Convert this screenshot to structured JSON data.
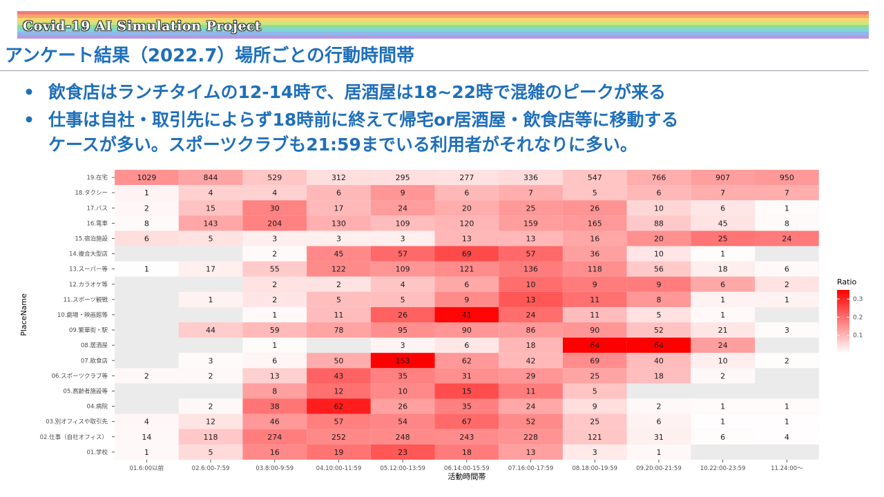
{
  "banner": {
    "title": "Covid-19 AI Simulation Project"
  },
  "slide": {
    "title": "アンケート結果（2022.7）場所ごとの行動時間帯",
    "bullets": [
      "飲食店はランチタイムの12-14時で、居酒屋は18~22時で混雑のピークが来る",
      "仕事は自社・取引先によらず18時前に終えて帰宅or居酒屋・飲食店等に移動する"
    ],
    "bullet2_continuation": "ケースが多い。スポーツクラブも21:59までいる利用者がそれなりに多い。",
    "bullet_marker": "•"
  },
  "colors": {
    "accent": "#1f6fba",
    "heat_high": "#ff0000",
    "heat_low": "#ffffff",
    "panel_bg": "#ebebeb"
  },
  "chart_data": {
    "type": "heatmap",
    "xlabel": "活動時間帯",
    "ylabel": "PlaceName",
    "x": [
      "01.6:00以前",
      "02.6:00-7:59",
      "03.8:00-9:59",
      "04.10:00-11:59",
      "05.12:00-13:59",
      "06.14:00-15:59",
      "07.16:00-17:59",
      "08.18:00-19:59",
      "09.20:00-21:59",
      "10.22:00-23:59",
      "11.24:00～"
    ],
    "y": [
      "19.在宅",
      "18.タクシー",
      "17.バス",
      "16.電車",
      "15.宿泊施設",
      "14.複合大型店",
      "13.スーパー等",
      "12.カラオケ等",
      "11.スポーツ観戦",
      "10.劇場・映画館等",
      "09.繁華街・駅",
      "08.居酒屋",
      "07.飲食店",
      "06.スポーツクラブ等",
      "05.高齢者施設等",
      "04.病院",
      "03.別オフィスや取引先",
      "02.仕事（自社オフィス）",
      "01.学校"
    ],
    "values": [
      [
        1029,
        844,
        529,
        312,
        295,
        277,
        336,
        547,
        766,
        907,
        950
      ],
      [
        1,
        4,
        4,
        6,
        9,
        6,
        7,
        5,
        6,
        7,
        7
      ],
      [
        2,
        15,
        30,
        17,
        24,
        20,
        25,
        26,
        10,
        6,
        1
      ],
      [
        8,
        143,
        204,
        130,
        109,
        120,
        159,
        165,
        88,
        45,
        8
      ],
      [
        6,
        5,
        3,
        3,
        3,
        13,
        13,
        16,
        20,
        25,
        24
      ],
      [
        null,
        null,
        2,
        45,
        57,
        69,
        57,
        36,
        10,
        1,
        null
      ],
      [
        1,
        17,
        55,
        122,
        109,
        121,
        136,
        118,
        56,
        18,
        6
      ],
      [
        null,
        null,
        2,
        2,
        4,
        6,
        10,
        9,
        9,
        6,
        2
      ],
      [
        null,
        1,
        2,
        5,
        5,
        9,
        13,
        11,
        8,
        1,
        1
      ],
      [
        null,
        null,
        1,
        11,
        26,
        41,
        24,
        11,
        5,
        1,
        null
      ],
      [
        null,
        44,
        59,
        78,
        95,
        90,
        86,
        90,
        52,
        21,
        3
      ],
      [
        null,
        null,
        1,
        null,
        3,
        6,
        18,
        64,
        64,
        24,
        null
      ],
      [
        null,
        3,
        6,
        50,
        153,
        62,
        42,
        69,
        40,
        10,
        2
      ],
      [
        2,
        2,
        13,
        43,
        35,
        31,
        29,
        25,
        18,
        2,
        null
      ],
      [
        null,
        null,
        8,
        12,
        10,
        15,
        11,
        5,
        null,
        null,
        null
      ],
      [
        null,
        2,
        38,
        62,
        26,
        35,
        24,
        9,
        2,
        1,
        1
      ],
      [
        4,
        12,
        46,
        57,
        54,
        67,
        52,
        25,
        6,
        1,
        1
      ],
      [
        14,
        118,
        274,
        252,
        248,
        243,
        228,
        121,
        31,
        6,
        4
      ],
      [
        1,
        5,
        16,
        19,
        23,
        18,
        13,
        3,
        1,
        null,
        null
      ]
    ],
    "legend": {
      "title": "Ratio",
      "ticks": [
        "0.3",
        "0.2",
        "0.1"
      ],
      "tick_values": [
        0.3,
        0.2,
        0.1
      ],
      "max": 0.35,
      "placement": "right"
    },
    "grid": true
  }
}
